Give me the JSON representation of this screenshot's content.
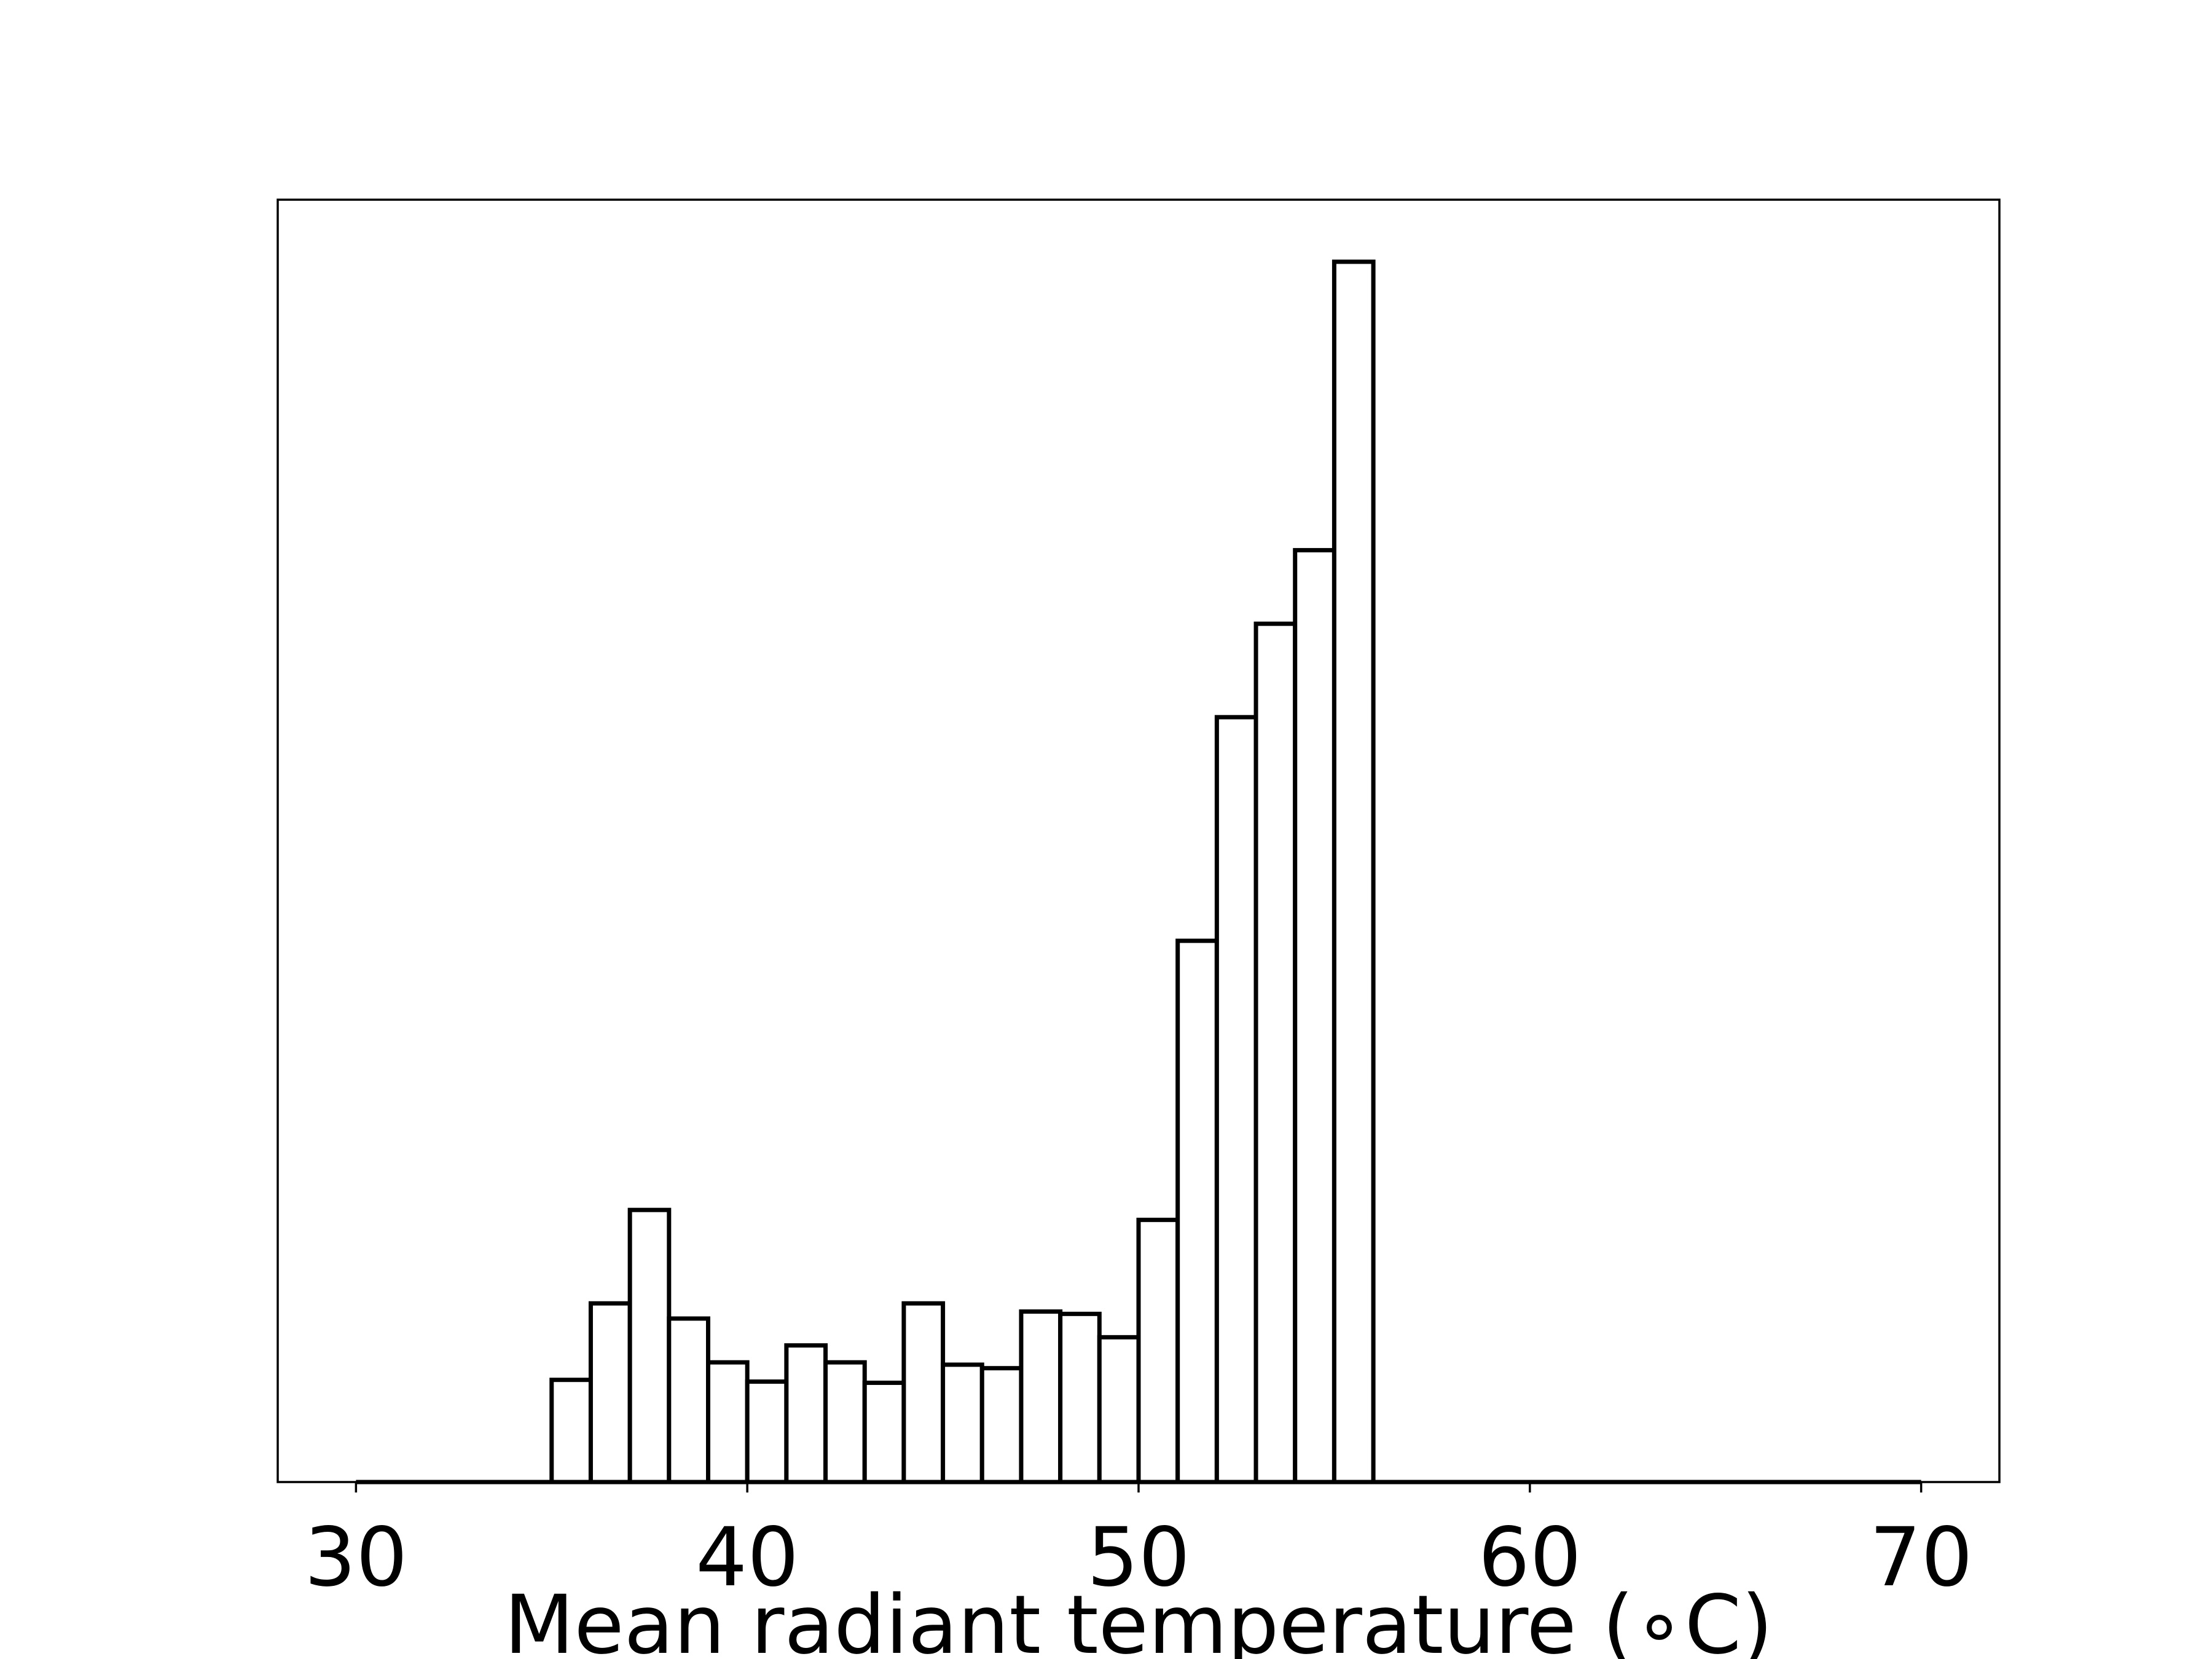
{
  "chart_data": {
    "type": "bar",
    "subtype": "histogram",
    "title": "",
    "xlabel": "Mean radiant temperature ($^\\circ$C)",
    "xlabel_display": "Mean radiant temperature (∘C)",
    "ylabel": "",
    "xlim": [
      28,
      72
    ],
    "ylim": [
      0,
      2.09
    ],
    "xticks": [
      30,
      40,
      50,
      60,
      70
    ],
    "yticks_visible": false,
    "grid": false,
    "bin_width": 1,
    "bins": [
      {
        "x0": 30,
        "x1": 31,
        "value": 0
      },
      {
        "x0": 31,
        "x1": 32,
        "value": 0
      },
      {
        "x0": 32,
        "x1": 33,
        "value": 0
      },
      {
        "x0": 33,
        "x1": 34,
        "value": 0
      },
      {
        "x0": 34,
        "x1": 35,
        "value": 0
      },
      {
        "x0": 35,
        "x1": 36,
        "value": 0.175
      },
      {
        "x0": 36,
        "x1": 37,
        "value": 0.306
      },
      {
        "x0": 37,
        "x1": 38,
        "value": 0.466
      },
      {
        "x0": 38,
        "x1": 39,
        "value": 0.28
      },
      {
        "x0": 39,
        "x1": 40,
        "value": 0.205
      },
      {
        "x0": 40,
        "x1": 41,
        "value": 0.172
      },
      {
        "x0": 41,
        "x1": 42,
        "value": 0.234
      },
      {
        "x0": 42,
        "x1": 43,
        "value": 0.205
      },
      {
        "x0": 43,
        "x1": 44,
        "value": 0.17
      },
      {
        "x0": 44,
        "x1": 45,
        "value": 0.306
      },
      {
        "x0": 45,
        "x1": 46,
        "value": 0.201
      },
      {
        "x0": 46,
        "x1": 47,
        "value": 0.195
      },
      {
        "x0": 47,
        "x1": 48,
        "value": 0.292
      },
      {
        "x0": 48,
        "x1": 49,
        "value": 0.288
      },
      {
        "x0": 49,
        "x1": 50,
        "value": 0.248
      },
      {
        "x0": 50,
        "x1": 51,
        "value": 0.449
      },
      {
        "x0": 51,
        "x1": 52,
        "value": 0.927
      },
      {
        "x0": 52,
        "x1": 53,
        "value": 1.31
      },
      {
        "x0": 53,
        "x1": 54,
        "value": 1.47
      },
      {
        "x0": 54,
        "x1": 55,
        "value": 1.596
      },
      {
        "x0": 55,
        "x1": 56,
        "value": 2.09
      },
      {
        "x0": 56,
        "x1": 57,
        "value": 0
      },
      {
        "x0": 57,
        "x1": 58,
        "value": 0
      },
      {
        "x0": 58,
        "x1": 59,
        "value": 0
      },
      {
        "x0": 59,
        "x1": 60,
        "value": 0
      },
      {
        "x0": 60,
        "x1": 61,
        "value": 0
      },
      {
        "x0": 61,
        "x1": 62,
        "value": 0
      },
      {
        "x0": 62,
        "x1": 63,
        "value": 0
      },
      {
        "x0": 63,
        "x1": 64,
        "value": 0
      },
      {
        "x0": 64,
        "x1": 65,
        "value": 0
      },
      {
        "x0": 65,
        "x1": 66,
        "value": 0
      },
      {
        "x0": 66,
        "x1": 67,
        "value": 0
      },
      {
        "x0": 67,
        "x1": 68,
        "value": 0
      },
      {
        "x0": 68,
        "x1": 69,
        "value": 0
      },
      {
        "x0": 69,
        "x1": 70,
        "value": 0
      }
    ],
    "colors": {
      "bar_fill": "#ffffff",
      "bar_edge": "#000000",
      "background": "#ffffff"
    }
  }
}
